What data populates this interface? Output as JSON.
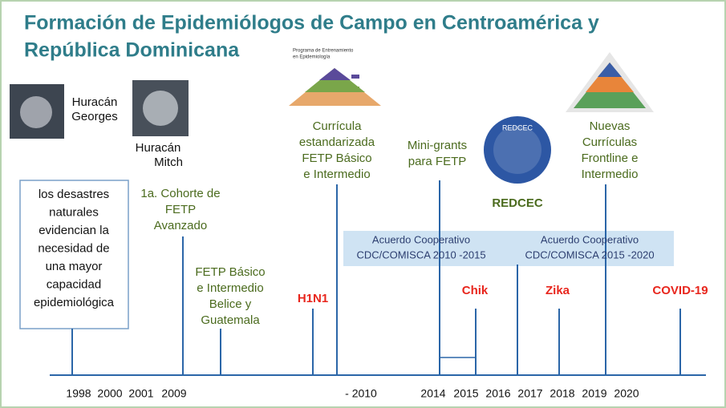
{
  "header": {
    "title": [
      "Formación de Epidemiólogos de Campo en Centroamérica y",
      "República Dominicana"
    ]
  },
  "images": {
    "georges": [
      "Huracán",
      "Georges"
    ],
    "mitch": [
      "Huracán",
      "Mitch"
    ],
    "program": [
      "Programa de Entrenamiento",
      "en Epidemiología"
    ],
    "logo": "REDCEC"
  },
  "box": [
    "los desastres",
    "naturales",
    "evidencian la",
    "necesidad de",
    "una mayor",
    "capacidad",
    "epidemiológica"
  ],
  "milestones": {
    "cohort": [
      "1a. Cohorte de",
      "FETP",
      "Avanzado"
    ],
    "basic": [
      "FETP Básico",
      "e Intermedio",
      "Belice y",
      "Guatemala"
    ],
    "curricula": [
      "Currícula",
      "estandarizada",
      "FETP Básico",
      "e Intermedio"
    ],
    "grants": [
      "Mini-grants",
      "para FETP"
    ],
    "redcec": "REDCEC",
    "new": [
      "Nuevas",
      "Currículas",
      "Frontline e",
      "Intermedio"
    ]
  },
  "agreements": [
    [
      "Acuerdo Cooperativo",
      "CDC/COMISCA 2010 -2015"
    ],
    [
      "Acuerdo Cooperativo",
      "CDC/COMISCA 2015 -2020"
    ]
  ],
  "outbreaks": [
    "H1N1",
    "Chik",
    "Zika",
    "COVID-19"
  ],
  "years": [
    "1998",
    "2000",
    "2001",
    "2009",
    "- 2010",
    "2014",
    "2015",
    "2016",
    "2017",
    "2018",
    "2019",
    "2020"
  ]
}
